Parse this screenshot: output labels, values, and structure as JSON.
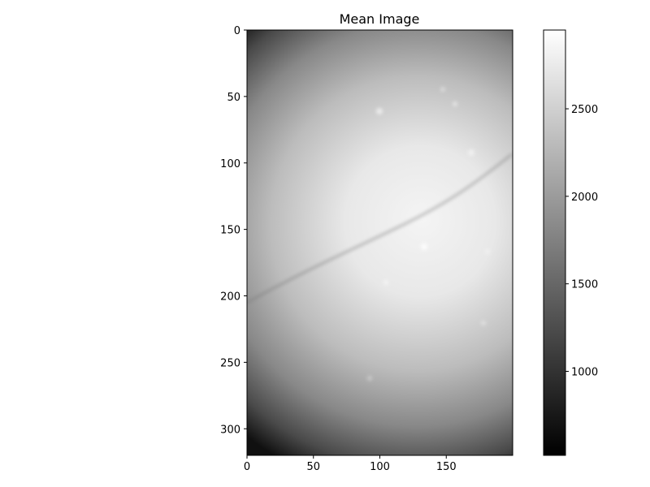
{
  "chart_data": {
    "type": "heatmap",
    "title": "Mean Image",
    "xlabel": "",
    "ylabel": "",
    "x_range": [
      0,
      200
    ],
    "y_range": [
      0,
      320
    ],
    "y_inverted": true,
    "x_ticks": [
      "0",
      "50",
      "100",
      "150"
    ],
    "y_ticks": [
      "0",
      "50",
      "100",
      "150",
      "200",
      "250",
      "300"
    ],
    "colormap": "gray",
    "colorbar": {
      "range": [
        520,
        2950
      ],
      "ticks": [
        "1000",
        "1500",
        "2000",
        "2500"
      ]
    },
    "image_description": "bright region centered near x=130, y=150 fading to dark corners; faint dark diagonal vessel running from lower-left to upper-right",
    "grid": false
  }
}
